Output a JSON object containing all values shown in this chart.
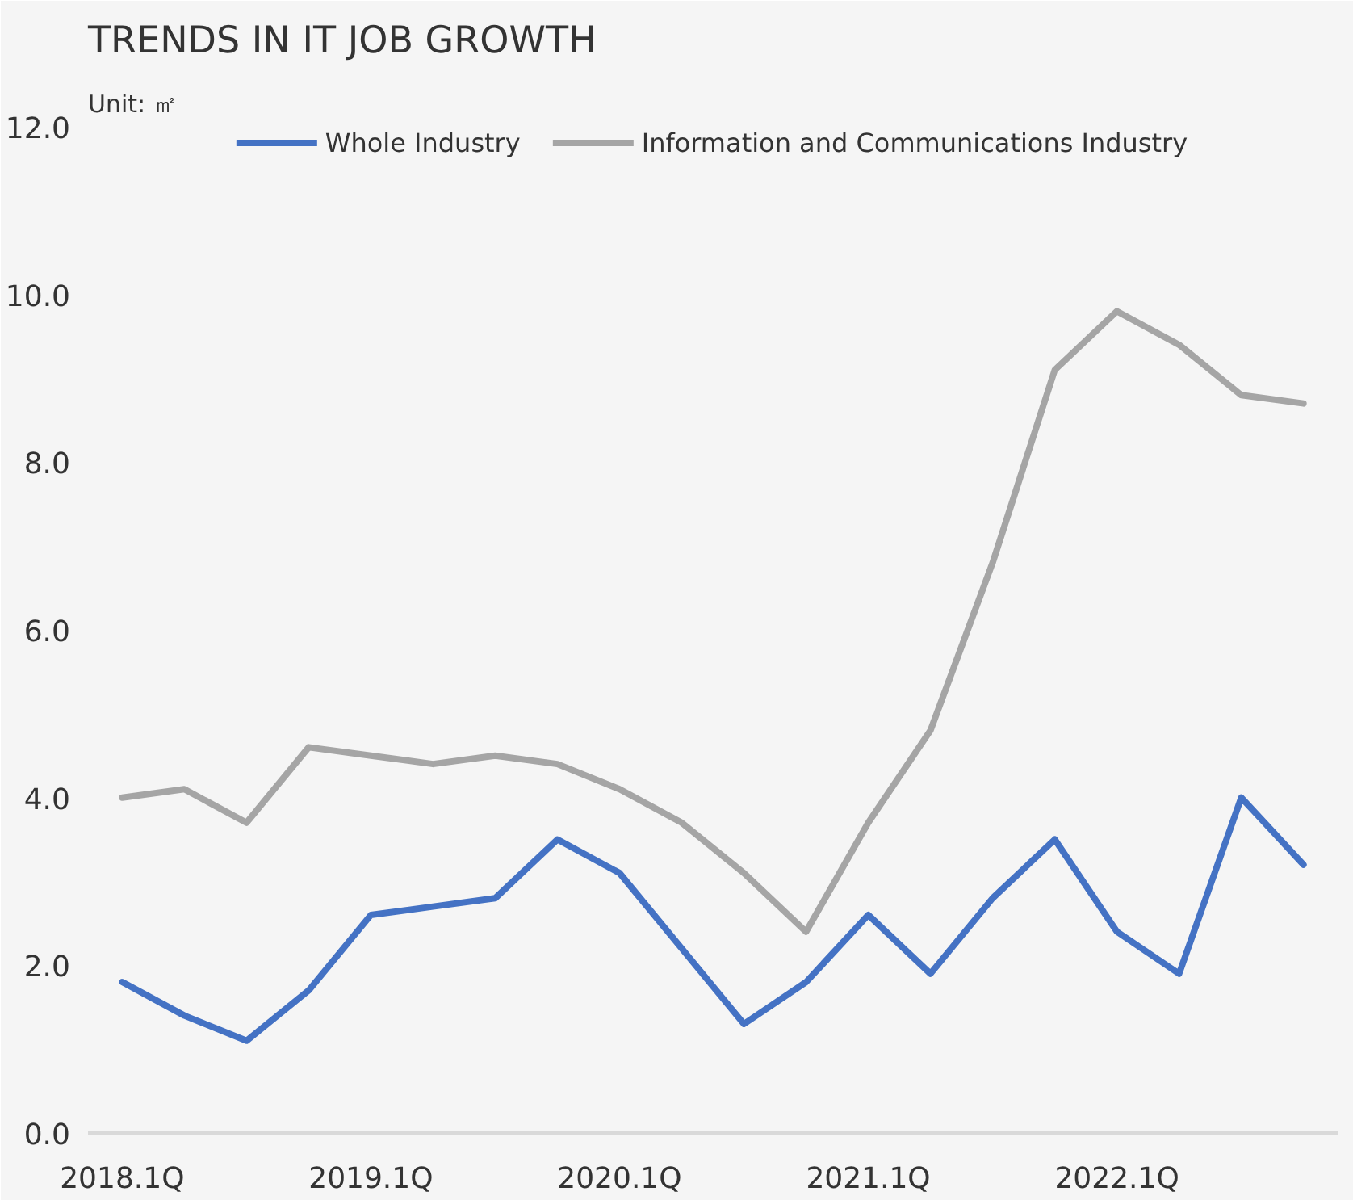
{
  "chart_data": {
    "type": "line",
    "title": "TRENDS IN IT JOB GROWTH",
    "annotations": [
      "Unit: ㎡"
    ],
    "categories": [
      "2018.1Q",
      null,
      null,
      null,
      "2019.1Q",
      null,
      null,
      null,
      "2020.1Q",
      null,
      null,
      null,
      "2021.1Q",
      null,
      null,
      null,
      "2022.1Q",
      null,
      null,
      null
    ],
    "series": [
      {
        "name": "Whole Industry",
        "color": "#4472c4",
        "values": [
          1.8,
          1.4,
          1.1,
          1.7,
          2.6,
          2.7,
          2.8,
          3.5,
          3.1,
          2.2,
          1.3,
          1.8,
          2.6,
          1.9,
          2.8,
          3.5,
          2.4,
          1.9,
          4.0,
          3.2
        ]
      },
      {
        "name": "Information and Communications Industry",
        "color": "#a5a5a5",
        "values": [
          4.0,
          4.1,
          3.7,
          4.6,
          4.5,
          4.4,
          4.5,
          4.4,
          4.1,
          3.7,
          3.1,
          2.4,
          3.7,
          4.8,
          6.8,
          9.1,
          9.8,
          9.4,
          8.8,
          8.7
        ]
      }
    ],
    "ylim": [
      0,
      12
    ],
    "yticks": [
      {
        "value": 0,
        "label": "0.0"
      },
      {
        "value": 2,
        "label": "2.0"
      },
      {
        "value": 4,
        "label": "4.0"
      },
      {
        "value": 6,
        "label": "6.0"
      },
      {
        "value": 8,
        "label": "8.0"
      },
      {
        "value": 10,
        "label": "10.0"
      },
      {
        "value": 12,
        "label": "12.0"
      }
    ],
    "legend": "top",
    "grid": false,
    "marker": "none",
    "line_style": "solid"
  }
}
